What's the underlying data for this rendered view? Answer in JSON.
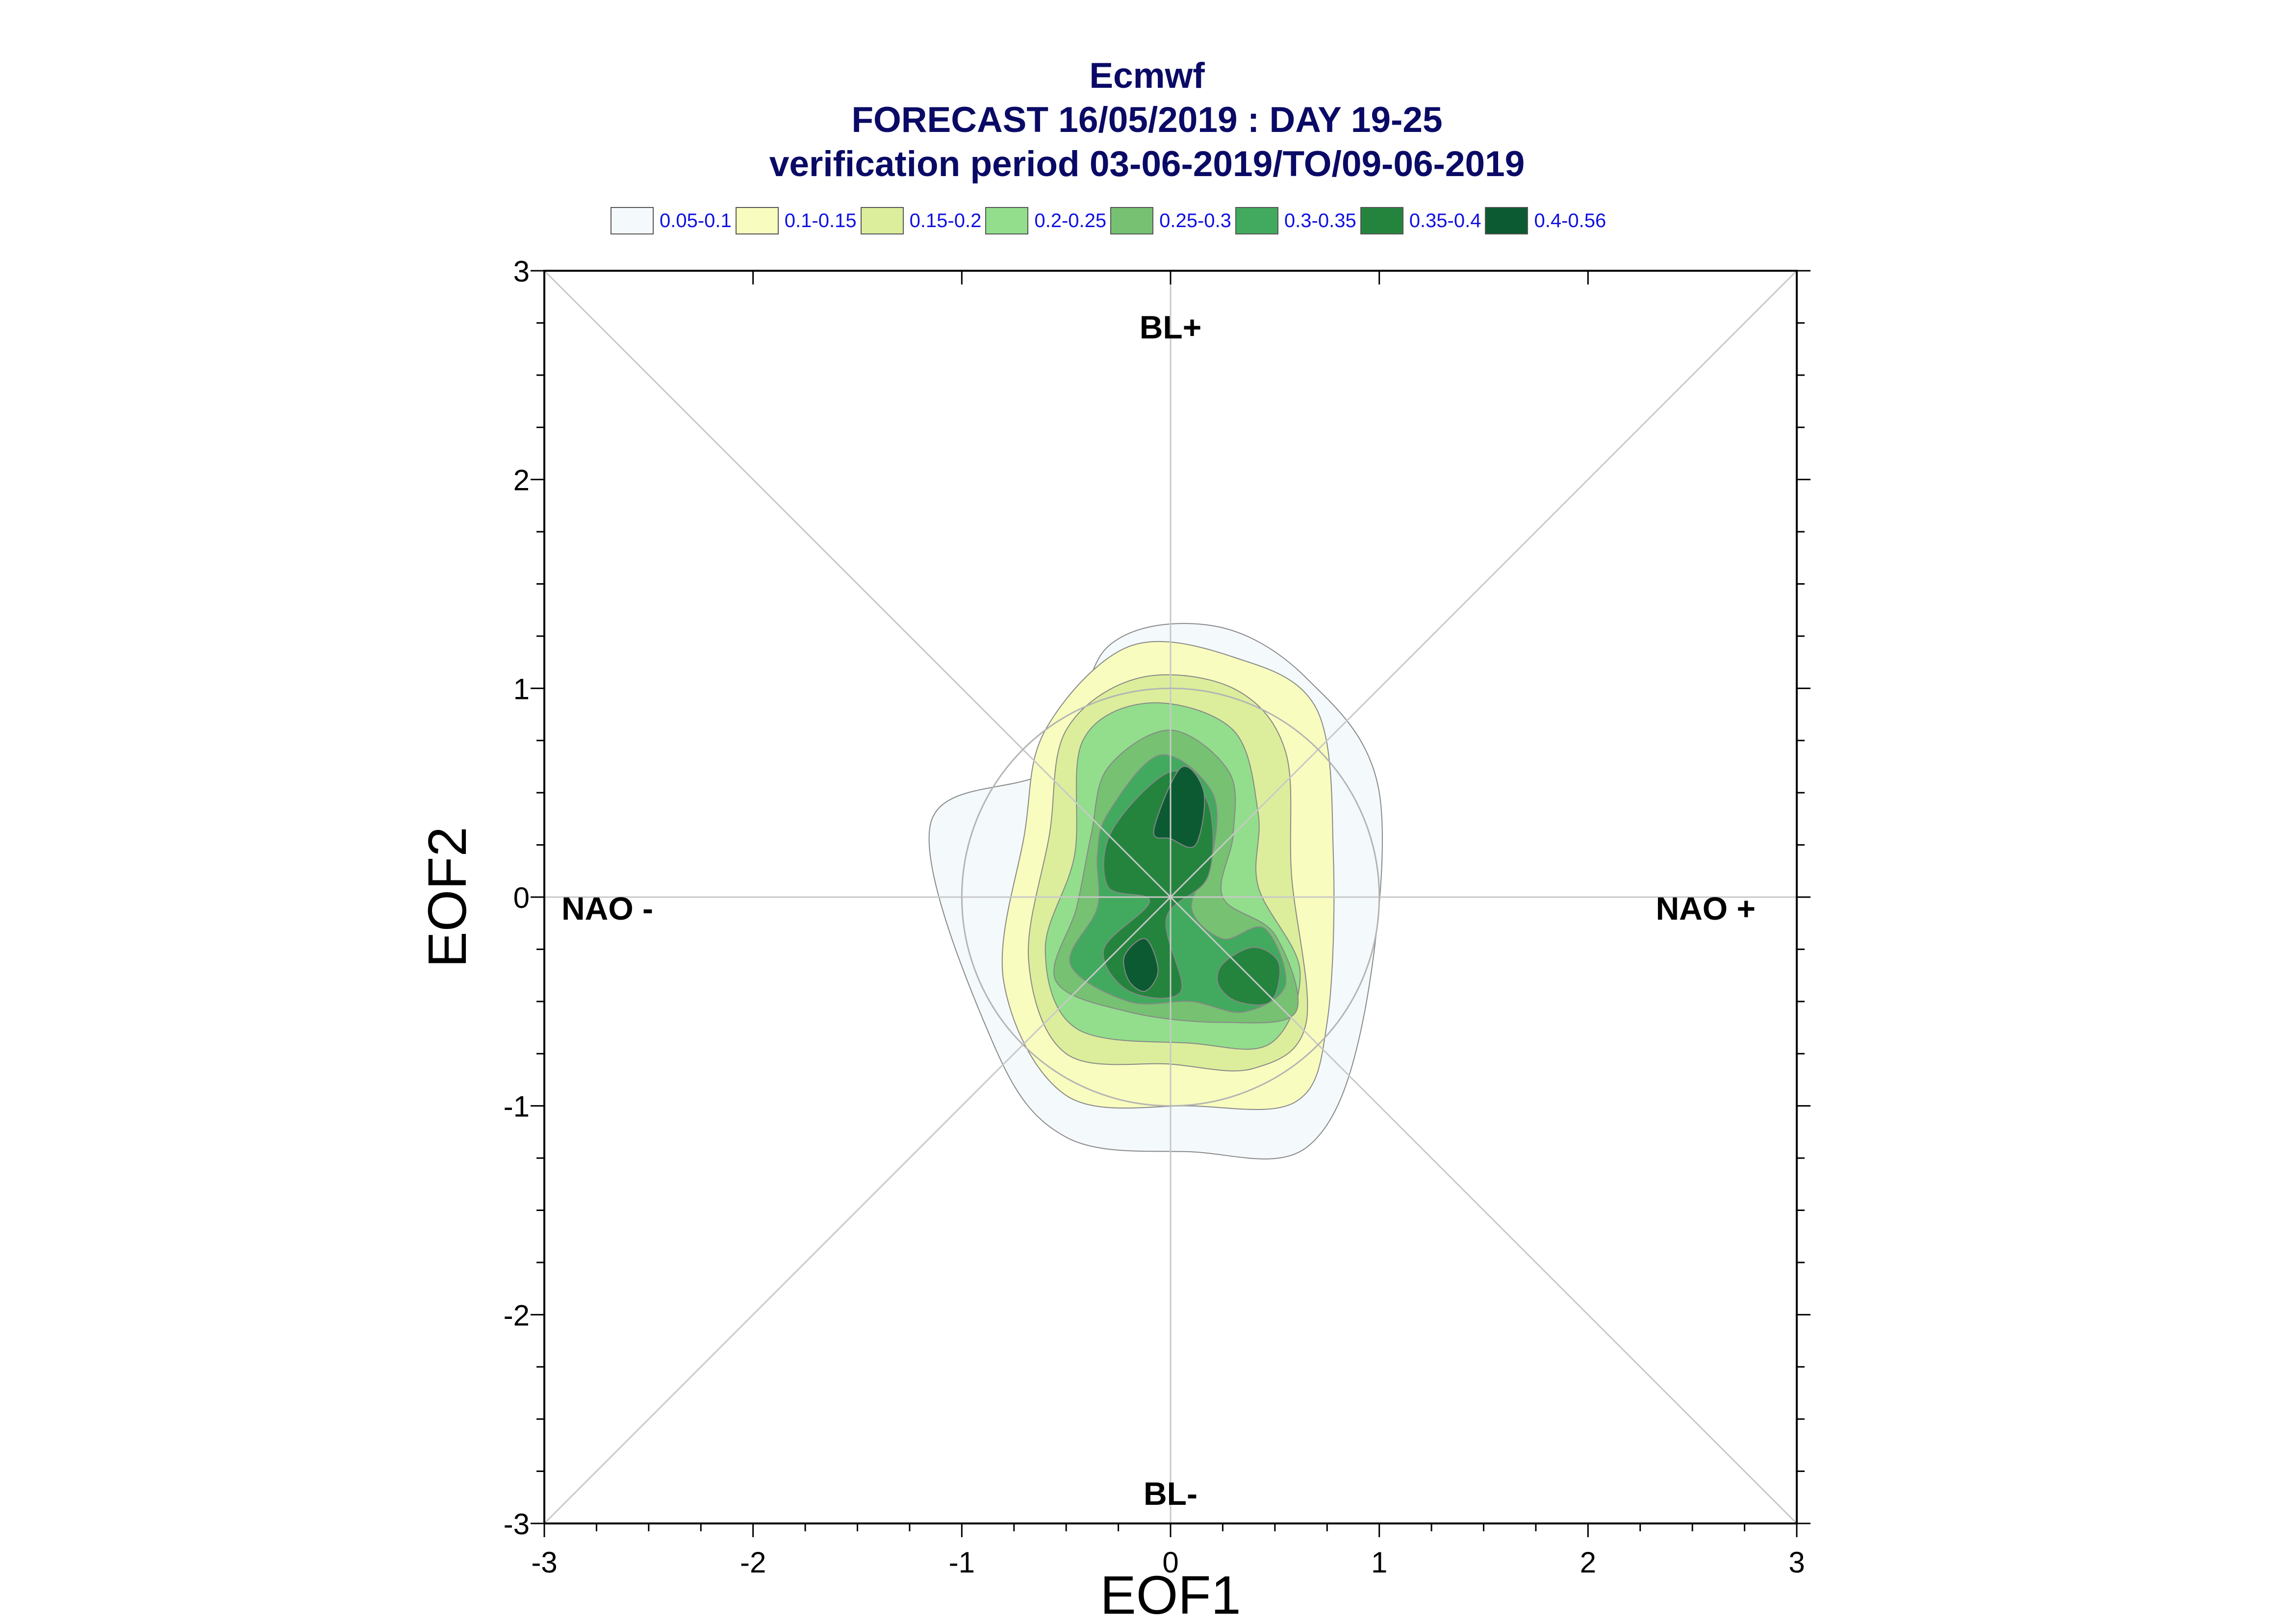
{
  "chart_data": {
    "type": "heatmap",
    "title": "Ecmwf",
    "subtitle": "FORECAST 16/05/2019 : DAY 19-25",
    "subtitle2": "verification period 03-06-2019/TO/09-06-2019",
    "xlabel": "EOF1",
    "ylabel": "EOF2",
    "xlim": [
      -3,
      3
    ],
    "ylim": [
      -3,
      3
    ],
    "xticks": [
      "-3",
      "-2",
      "-1",
      "0",
      "1",
      "2",
      "3"
    ],
    "yticks": [
      "-3",
      "-2",
      "-1",
      "0",
      "1",
      "2",
      "3"
    ],
    "regime_labels": {
      "top": "BL+",
      "bottom": "BL-",
      "left": "NAO -",
      "right": "NAO +"
    },
    "legend": [
      {
        "label": "0.05-0.1",
        "color": "#f4f9fc"
      },
      {
        "label": "0.1-0.15",
        "color": "#f8fcbe"
      },
      {
        "label": "0.15-0.2",
        "color": "#dcee9c"
      },
      {
        "label": "0.2-0.25",
        "color": "#92de8c"
      },
      {
        "label": "0.25-0.3",
        "color": "#76c172"
      },
      {
        "label": "0.3-0.35",
        "color": "#42aa5e"
      },
      {
        "label": "0.35-0.4",
        "color": "#24843e"
      },
      {
        "label": "0.4-0.56",
        "color": "#0b5a32"
      }
    ],
    "density_peaks": [
      {
        "x": 0.05,
        "y": 0.5,
        "value": 0.48
      },
      {
        "x": -0.13,
        "y": -0.32,
        "value": 0.45
      },
      {
        "x": 0.42,
        "y": -0.38,
        "value": 0.38
      }
    ],
    "reference_circle_radius": 1.0,
    "grid": false
  }
}
